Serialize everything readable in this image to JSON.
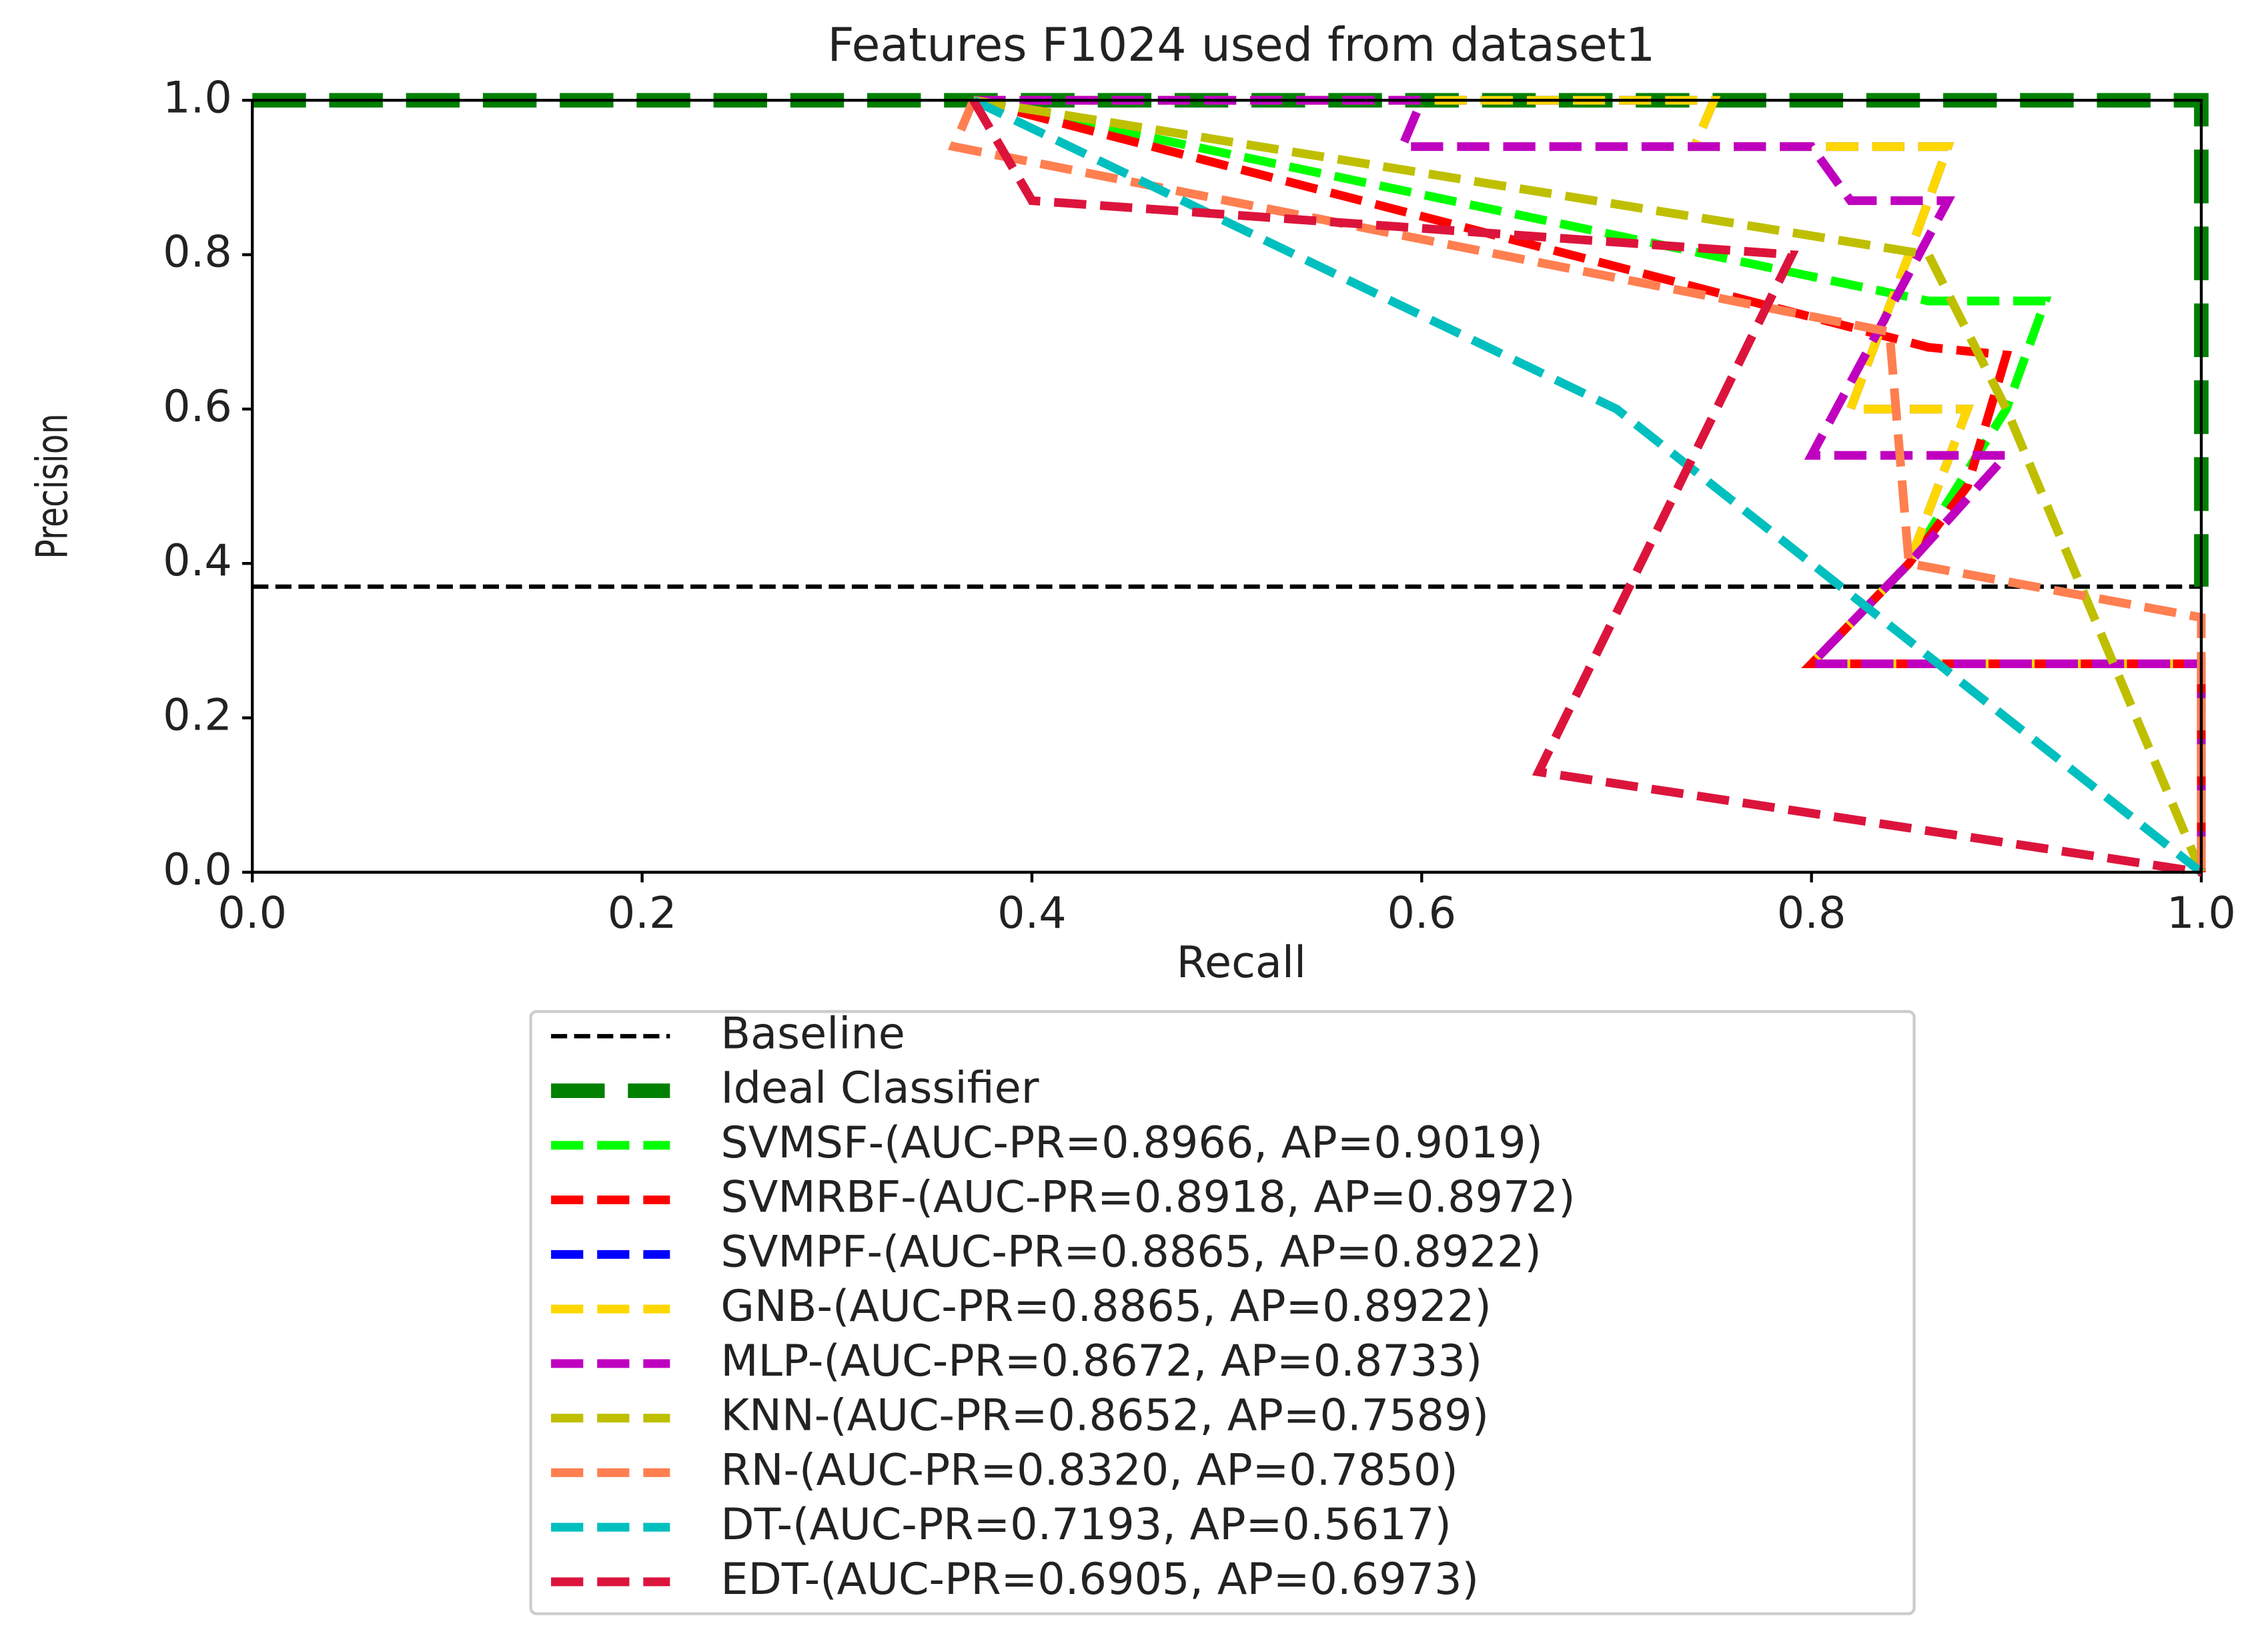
{
  "chart_data": {
    "type": "line",
    "title": "Features F1024 used from dataset1",
    "xlabel": "Recall",
    "ylabel": "Precision",
    "xlim": [
      0,
      1
    ],
    "ylim": [
      0,
      1
    ],
    "xticks": [
      {
        "value": 0,
        "label": "0.0"
      },
      0.2,
      0.4,
      0.6,
      0.8,
      {
        "value": 1,
        "label": "1.0"
      }
    ],
    "yticks": [
      {
        "value": 0,
        "label": "0.0"
      },
      0.2,
      0.4,
      0.6,
      0.8,
      {
        "value": 1,
        "label": "1.0"
      }
    ],
    "legend": "below",
    "series": [
      {
        "name": "Baseline",
        "color": "#000000",
        "linewidth": 3,
        "x": [
          0,
          1
        ],
        "values": [
          0.37,
          0.37
        ]
      },
      {
        "name": "Ideal Classifier",
        "color": "#008000",
        "linewidth": 10,
        "x": [
          0,
          1,
          1
        ],
        "values": [
          1,
          1,
          0.37
        ]
      },
      {
        "name": "SVMSF-(AUC-PR=0.8966, AP=0.9019)",
        "color": "#00ff00",
        "linewidth": 6,
        "x": [
          0.37,
          0.86,
          0.92,
          0.9,
          0.85,
          0.8,
          1,
          1
        ],
        "values": [
          1,
          0.74,
          0.74,
          0.6,
          0.4,
          0.27,
          0.27,
          0
        ]
      },
      {
        "name": "SVMRBF-(AUC-PR=0.8918, AP=0.8972)",
        "color": "#ff0000",
        "linewidth": 6,
        "x": [
          0.37,
          0.86,
          0.9,
          0.88,
          0.85,
          0.8,
          1,
          1
        ],
        "values": [
          1,
          0.68,
          0.67,
          0.5,
          0.4,
          0.27,
          0.27,
          0
        ]
      },
      {
        "name": "SVMPF-(AUC-PR=0.8865, AP=0.8922)",
        "color": "#0000ff",
        "linewidth": 6,
        "x": [
          0.37,
          0.75,
          0.74,
          0.87,
          0.85,
          0.82,
          0.88,
          0.85,
          0.8,
          1,
          1
        ],
        "values": [
          1,
          1,
          0.94,
          0.94,
          0.8,
          0.6,
          0.6,
          0.4,
          0.27,
          0.27,
          0
        ]
      },
      {
        "name": "GNB-(AUC-PR=0.8865, AP=0.8922)",
        "color": "#ffd700",
        "linewidth": 6,
        "x": [
          0.37,
          0.75,
          0.74,
          0.87,
          0.85,
          0.82,
          0.88,
          0.85,
          0.8,
          1,
          1
        ],
        "values": [
          1,
          1,
          0.94,
          0.94,
          0.8,
          0.6,
          0.6,
          0.4,
          0.27,
          0.27,
          0
        ]
      },
      {
        "name": "MLP-(AUC-PR=0.8672, AP=0.8733)",
        "color": "#bf00bf",
        "linewidth": 6,
        "x": [
          0.37,
          0.6,
          0.59,
          0.8,
          0.82,
          0.87,
          0.8,
          0.9,
          0.85,
          0.8,
          1,
          1
        ],
        "values": [
          1,
          1,
          0.94,
          0.94,
          0.87,
          0.87,
          0.54,
          0.54,
          0.4,
          0.27,
          0.27,
          0
        ]
      },
      {
        "name": "KNN-(AUC-PR=0.8652, AP=0.7589)",
        "color": "#bfbf00",
        "linewidth": 6,
        "x": [
          0.37,
          0.86,
          0.9,
          1
        ],
        "values": [
          1,
          0.8,
          0.6,
          0
        ]
      },
      {
        "name": "RN-(AUC-PR=0.8320, AP=0.7850)",
        "color": "#ff7f50",
        "linewidth": 6,
        "x": [
          0.37,
          0.36,
          0.84,
          0.85,
          1,
          1
        ],
        "values": [
          1,
          0.94,
          0.7,
          0.4,
          0.33,
          0
        ]
      },
      {
        "name": "DT-(AUC-PR=0.7193, AP=0.5617)",
        "color": "#00bfbf",
        "linewidth": 6,
        "x": [
          0.37,
          0.7,
          1
        ],
        "values": [
          1,
          0.6,
          0
        ]
      },
      {
        "name": "EDT-(AUC-PR=0.6905, AP=0.6973)",
        "color": "#dc143c",
        "linewidth": 6,
        "x": [
          0.37,
          0.4,
          0.79,
          0.66,
          1
        ],
        "values": [
          1,
          0.87,
          0.8,
          0.13,
          0
        ]
      }
    ]
  }
}
